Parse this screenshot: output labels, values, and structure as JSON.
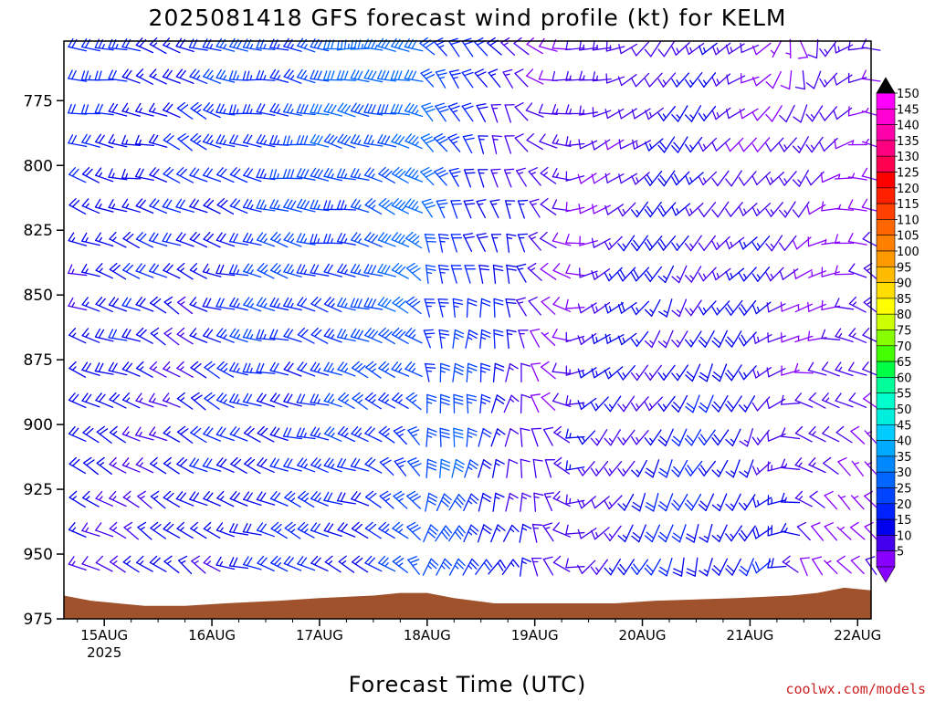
{
  "title": "2025081418 GFS forecast wind profile (kt) for KELM",
  "xlabel": "Forecast Time (UTC)",
  "credit": "coolwx.com/models",
  "chart_data": {
    "type": "wind-barb-profile",
    "title": "2025081418 GFS forecast wind profile (kt) for KELM",
    "xlabel": "Forecast Time (UTC)",
    "ylabel": "",
    "y_scale": "pressure (hPa), increasing downward",
    "ylim": [
      975,
      752
    ],
    "y_ticks": [
      775,
      800,
      825,
      850,
      875,
      900,
      925,
      950,
      975
    ],
    "x_range_hours": [
      -3,
      177
    ],
    "x_ticks": [
      {
        "hour": 6,
        "label": "15AUG",
        "sublabel": "2025"
      },
      {
        "hour": 30,
        "label": "16AUG"
      },
      {
        "hour": 54,
        "label": "17AUG"
      },
      {
        "hour": 78,
        "label": "18AUG"
      },
      {
        "hour": 102,
        "label": "19AUG"
      },
      {
        "hour": 126,
        "label": "20AUG"
      },
      {
        "hour": 150,
        "label": "21AUG"
      },
      {
        "hour": 174,
        "label": "22AUG"
      }
    ],
    "levels_hpa": [
      755,
      767,
      780,
      792,
      805,
      817,
      830,
      842,
      855,
      867,
      880,
      892,
      905,
      917,
      930,
      942,
      955
    ],
    "forecast_hours_step": 3,
    "forecast_hours_range": [
      0,
      177
    ],
    "wind_keyframes": [
      {
        "hour": 0,
        "low": {
          "dir": 300,
          "spd": 15
        },
        "high": {
          "dir": 280,
          "spd": 20
        }
      },
      {
        "hour": 12,
        "low": {
          "dir": 300,
          "spd": 15
        },
        "high": {
          "dir": 280,
          "spd": 20
        }
      },
      {
        "hour": 24,
        "low": {
          "dir": 305,
          "spd": 15
        },
        "high": {
          "dir": 295,
          "spd": 20
        }
      },
      {
        "hour": 36,
        "low": {
          "dir": 290,
          "spd": 20
        },
        "high": {
          "dir": 280,
          "spd": 25
        }
      },
      {
        "hour": 60,
        "low": {
          "dir": 295,
          "spd": 20
        },
        "high": {
          "dir": 275,
          "spd": 30
        }
      },
      {
        "hour": 75,
        "low": {
          "dir": 320,
          "spd": 25
        },
        "high": {
          "dir": 285,
          "spd": 35
        }
      },
      {
        "hour": 78,
        "low": {
          "dir": 20,
          "spd": 25
        },
        "high": {
          "dir": 310,
          "spd": 30
        }
      },
      {
        "hour": 84,
        "low": {
          "dir": 30,
          "spd": 30
        },
        "high": {
          "dir": 315,
          "spd": 20
        }
      },
      {
        "hour": 96,
        "low": {
          "dir": 30,
          "spd": 15
        },
        "high": {
          "dir": 325,
          "spd": 15
        }
      },
      {
        "hour": 105,
        "low": {
          "dir": 340,
          "spd": 10
        },
        "high": {
          "dir": 280,
          "spd": 10
        }
      },
      {
        "hour": 114,
        "low": {
          "dir": 220,
          "spd": 15
        },
        "high": {
          "dir": 260,
          "spd": 10
        }
      },
      {
        "hour": 132,
        "low": {
          "dir": 200,
          "spd": 20
        },
        "high": {
          "dir": 220,
          "spd": 15
        }
      },
      {
        "hour": 150,
        "low": {
          "dir": 200,
          "spd": 20
        },
        "high": {
          "dir": 240,
          "spd": 10
        }
      },
      {
        "hour": 162,
        "low": {
          "dir": 330,
          "spd": 10
        },
        "high": {
          "dir": 170,
          "spd": 10
        }
      },
      {
        "hour": 177,
        "low": {
          "dir": 320,
          "spd": 10
        },
        "high": {
          "dir": 280,
          "spd": 10
        }
      }
    ],
    "terrain_hpa": [
      {
        "hour": -3,
        "p": 966
      },
      {
        "hour": 3,
        "p": 968
      },
      {
        "hour": 9,
        "p": 969
      },
      {
        "hour": 15,
        "p": 970
      },
      {
        "hour": 24,
        "p": 970
      },
      {
        "hour": 33,
        "p": 969
      },
      {
        "hour": 45,
        "p": 968
      },
      {
        "hour": 54,
        "p": 967
      },
      {
        "hour": 66,
        "p": 966
      },
      {
        "hour": 72,
        "p": 965
      },
      {
        "hour": 78,
        "p": 965
      },
      {
        "hour": 84,
        "p": 967
      },
      {
        "hour": 93,
        "p": 969
      },
      {
        "hour": 102,
        "p": 969
      },
      {
        "hour": 120,
        "p": 969
      },
      {
        "hour": 129,
        "p": 968
      },
      {
        "hour": 147,
        "p": 967
      },
      {
        "hour": 159,
        "p": 966
      },
      {
        "hour": 165,
        "p": 965
      },
      {
        "hour": 171,
        "p": 963
      },
      {
        "hour": 177,
        "p": 964
      }
    ],
    "colorbar": {
      "labels": [
        150,
        145,
        140,
        135,
        130,
        125,
        120,
        115,
        110,
        105,
        100,
        95,
        90,
        85,
        80,
        75,
        70,
        65,
        60,
        55,
        50,
        45,
        40,
        35,
        30,
        25,
        20,
        15,
        10,
        5
      ],
      "colors": [
        "#ff00ff",
        "#ff00d4",
        "#ff00aa",
        "#ff0080",
        "#ff0050",
        "#ff0000",
        "#ff2000",
        "#ff4000",
        "#ff6600",
        "#ff8000",
        "#ff9900",
        "#ffbb00",
        "#ffdd00",
        "#ffff00",
        "#ccff00",
        "#88ff00",
        "#44ff00",
        "#00ff44",
        "#00ff99",
        "#00ffcc",
        "#00eedd",
        "#00ccff",
        "#00aaff",
        "#0088ff",
        "#0066ff",
        "#0044ff",
        "#0022ff",
        "#0000ee",
        "#4400ee",
        "#8800ff"
      ],
      "top_triangle_color": "#000000",
      "bottom_triangle_color": "#8800ff"
    },
    "terrain_color": "#a0522d",
    "grid": false
  }
}
